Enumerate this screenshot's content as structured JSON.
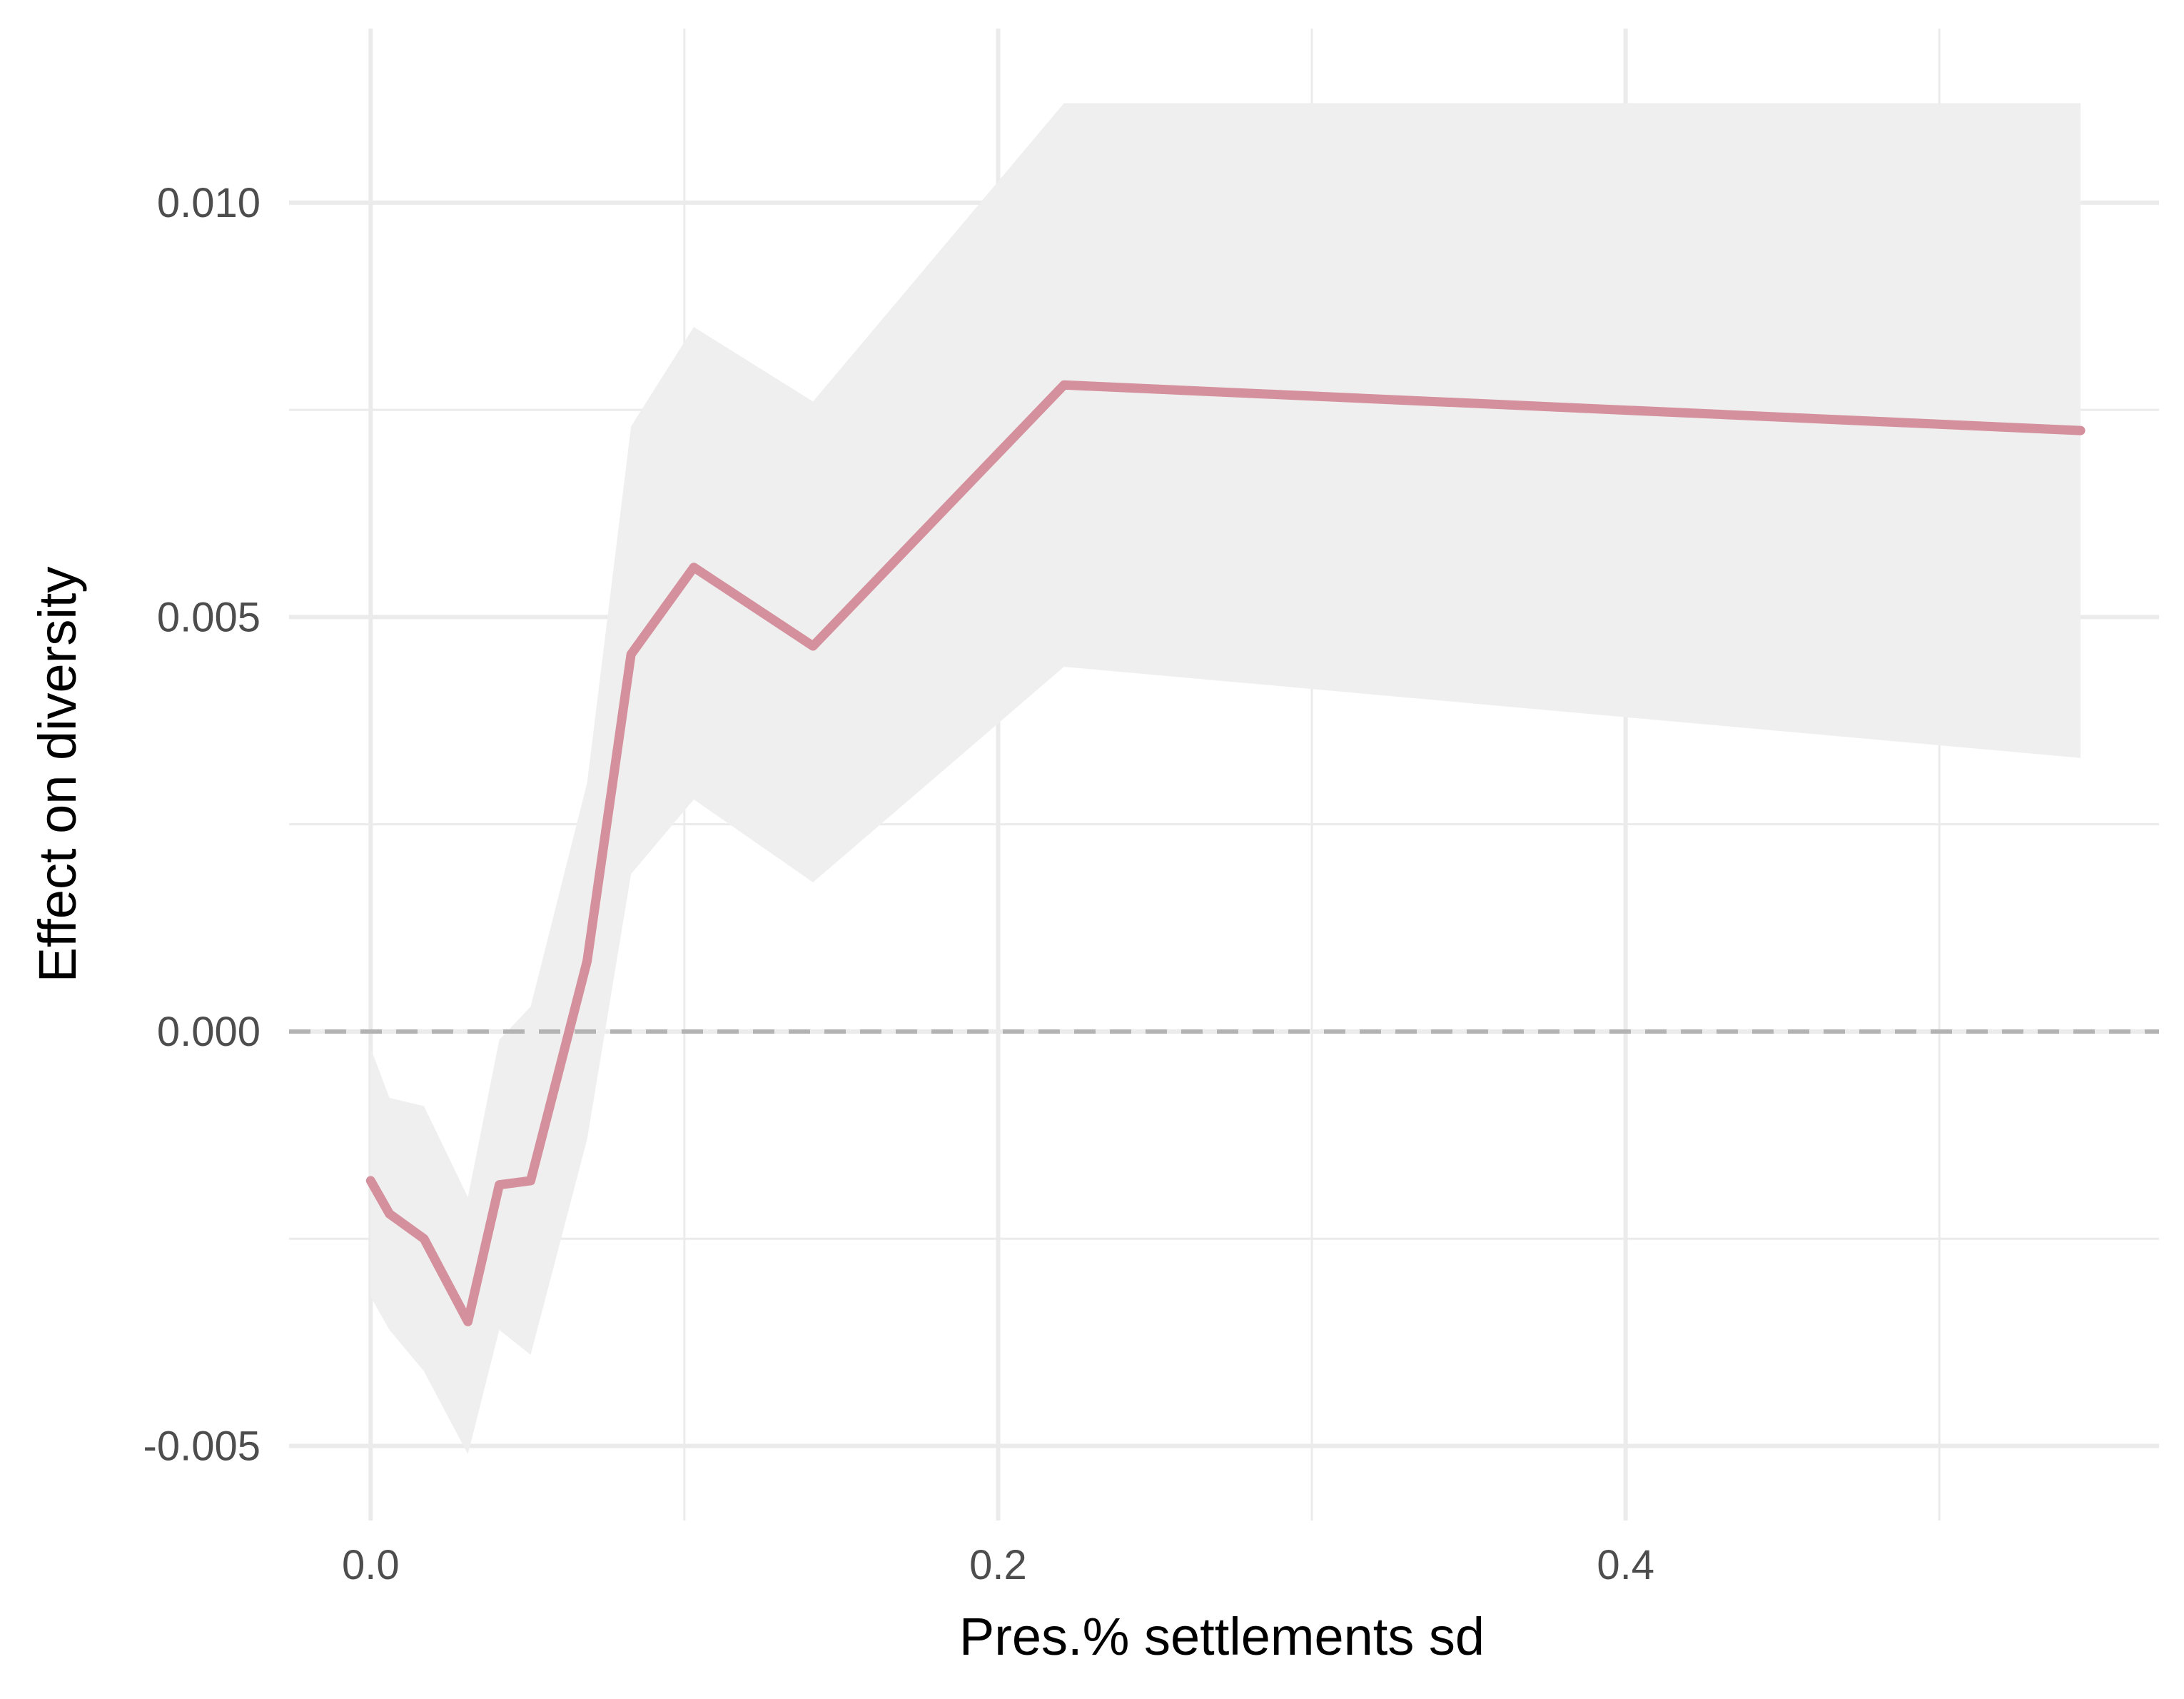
{
  "chart_data": {
    "type": "line",
    "title": "",
    "xlabel": "Pres.% settlements sd",
    "ylabel": "Effect on diversity",
    "xlim": [
      -0.026,
      0.57
    ],
    "ylim": [
      -0.0059,
      0.0121
    ],
    "x_ticks": [
      {
        "value": 0.0,
        "label": "0.0"
      },
      {
        "value": 0.2,
        "label": "0.2"
      },
      {
        "value": 0.4,
        "label": "0.4"
      }
    ],
    "x_minor_ticks": [
      0.1,
      0.3,
      0.5
    ],
    "y_ticks": [
      {
        "value": -0.005,
        "label": "-0.005"
      },
      {
        "value": 0.0,
        "label": "0.000"
      },
      {
        "value": 0.005,
        "label": "0.005"
      },
      {
        "value": 0.01,
        "label": "0.010"
      }
    ],
    "y_minor_ticks": [
      -0.0025,
      0.0025,
      0.0075
    ],
    "reference_line": {
      "y": 0.0,
      "style": "dashed",
      "color": "#b3b3b3"
    },
    "grid": true,
    "colors": {
      "line": "#d4909c",
      "band": "#efefef",
      "grid": "#ebebeb"
    },
    "series": [
      {
        "x": [
          0.0,
          0.006,
          0.017,
          0.031,
          0.041,
          0.051,
          0.069,
          0.083,
          0.103,
          0.141,
          0.221,
          0.545
        ],
        "y": [
          -0.0018,
          -0.0022,
          -0.0025,
          -0.0035,
          -0.00185,
          -0.0018,
          0.00085,
          0.00455,
          0.0056,
          0.00465,
          0.0078,
          0.00725
        ],
        "lower": [
          -0.0032,
          -0.0036,
          -0.0041,
          -0.0051,
          -0.0036,
          -0.0039,
          -0.0013,
          0.0019,
          0.0028,
          0.0018,
          0.0044,
          0.0033
        ],
        "upper": [
          -0.0002,
          -0.0008,
          -0.0009,
          -0.002,
          -0.0001,
          0.0003,
          0.003,
          0.0073,
          0.0085,
          0.0076,
          0.0112,
          0.0112
        ]
      }
    ]
  }
}
